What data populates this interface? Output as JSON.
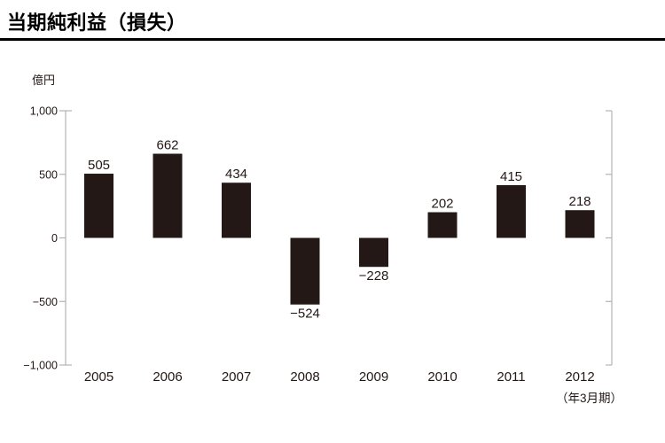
{
  "header": {
    "title": "当期純利益（損失）"
  },
  "chart": {
    "unit_label": "億円",
    "axis_note": "（年3月期）"
  },
  "chart_data": {
    "type": "bar",
    "title": "当期純利益（損失）",
    "categories": [
      "2005",
      "2006",
      "2007",
      "2008",
      "2009",
      "2010",
      "2011",
      "2012"
    ],
    "values": [
      505,
      662,
      434,
      -524,
      -228,
      202,
      415,
      218
    ],
    "value_labels": [
      "505",
      "662",
      "434",
      "−524",
      "−228",
      "202",
      "415",
      "218"
    ],
    "xlabel": "（年3月期）",
    "ylabel": "億円",
    "ylim": [
      -1000,
      1000
    ],
    "yticks": [
      1000,
      500,
      0,
      -500,
      -1000
    ],
    "ytick_labels": [
      "1,000",
      "500",
      "0",
      "−500",
      "−1,000"
    ],
    "grid": false,
    "legend_position": "none",
    "bar_color": "#231815",
    "axis_color": "#b3b3b3",
    "text_color": "#231815"
  }
}
